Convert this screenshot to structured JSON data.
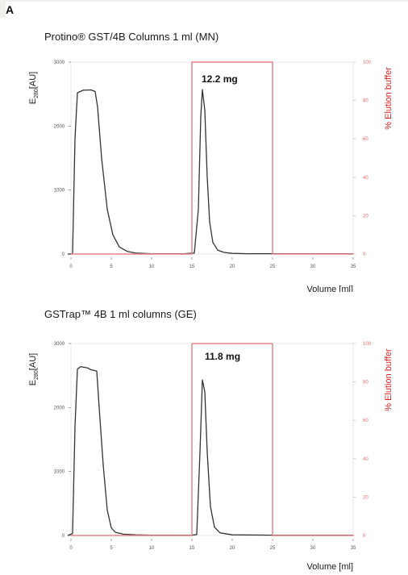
{
  "panel_label": "A",
  "colors": {
    "trace": "#333333",
    "elution": "#e9848c",
    "right_axis": "#e02020"
  },
  "chart_data": [
    {
      "type": "line",
      "title": "Protino® GST/4B Columns 1 ml (MN)",
      "xlabel": "Volume [ml]",
      "ylabel": "E280[AU]",
      "ylabel_main": "E",
      "ylabel_sub": "280",
      "ylabel_tail": "[AU]",
      "y2label": "% Elution buffer",
      "xlim": [
        0,
        35
      ],
      "ylim": [
        0,
        3000
      ],
      "y2lim": [
        0,
        100
      ],
      "x_ticks": [
        "0",
        "5",
        "10",
        "15",
        "20",
        "25",
        "30",
        "35"
      ],
      "y_ticks": [
        "0",
        "1000",
        "2000",
        "3000"
      ],
      "y2_ticks": [
        "0",
        "20",
        "40",
        "60",
        "80",
        "100"
      ],
      "annotation": "12.2 mg",
      "series": [
        {
          "axis": "left",
          "x": [
            -0.4,
            0.2,
            0.5,
            0.8,
            1.5,
            2.5,
            3.0,
            3.3,
            3.8,
            4.5,
            5.2,
            6.0,
            7.0,
            8.0,
            10,
            14,
            15.3,
            15.8,
            16.1,
            16.3,
            16.6,
            16.9,
            17.2,
            17.6,
            18.2,
            19,
            20,
            22,
            25,
            30,
            35
          ],
          "y": [
            0,
            0,
            1800,
            2520,
            2560,
            2565,
            2540,
            2300,
            1500,
            700,
            300,
            110,
            40,
            15,
            5,
            5,
            15,
            700,
            2150,
            2570,
            2250,
            1200,
            500,
            180,
            60,
            25,
            10,
            5,
            5,
            5,
            5
          ]
        },
        {
          "axis": "right",
          "x": [
            0,
            15,
            15,
            25,
            25,
            35
          ],
          "y": [
            0,
            0,
            100,
            100,
            0,
            0
          ]
        }
      ]
    },
    {
      "type": "line",
      "title": "GSTrap™ 4B 1 ml columns (GE)",
      "xlabel": "Volume [ml]",
      "ylabel": "E280[AU]",
      "ylabel_main": "E",
      "ylabel_sub": "280",
      "ylabel_tail": "[AU]",
      "y2label": "% Elution buffer",
      "xlim": [
        0,
        35
      ],
      "ylim": [
        0,
        3000
      ],
      "y2lim": [
        0,
        100
      ],
      "x_ticks": [
        "0",
        "5",
        "10",
        "15",
        "20",
        "25",
        "30",
        "35"
      ],
      "y_ticks": [
        "0",
        "1000",
        "2000",
        "3000"
      ],
      "y2_ticks": [
        "0",
        "20",
        "40",
        "60",
        "80",
        "100"
      ],
      "annotation": "11.8 mg",
      "series": [
        {
          "axis": "left",
          "x": [
            -0.4,
            0.2,
            0.5,
            0.8,
            1.2,
            2.0,
            2.5,
            3.2,
            3.5,
            4.0,
            4.5,
            5.0,
            5.5,
            6.5,
            8,
            10,
            15,
            15.6,
            16.0,
            16.3,
            16.6,
            16.9,
            17.3,
            17.8,
            18.5,
            20,
            25,
            30,
            35
          ],
          "y": [
            0,
            30,
            1700,
            2600,
            2640,
            2620,
            2590,
            2570,
            2000,
            1100,
            400,
            120,
            50,
            20,
            10,
            5,
            5,
            15,
            1300,
            2430,
            2250,
            1300,
            450,
            130,
            40,
            10,
            5,
            5,
            5
          ]
        },
        {
          "axis": "right",
          "x": [
            0,
            15,
            15,
            25,
            25,
            35
          ],
          "y": [
            0,
            0,
            100,
            100,
            0,
            0
          ]
        }
      ]
    }
  ]
}
